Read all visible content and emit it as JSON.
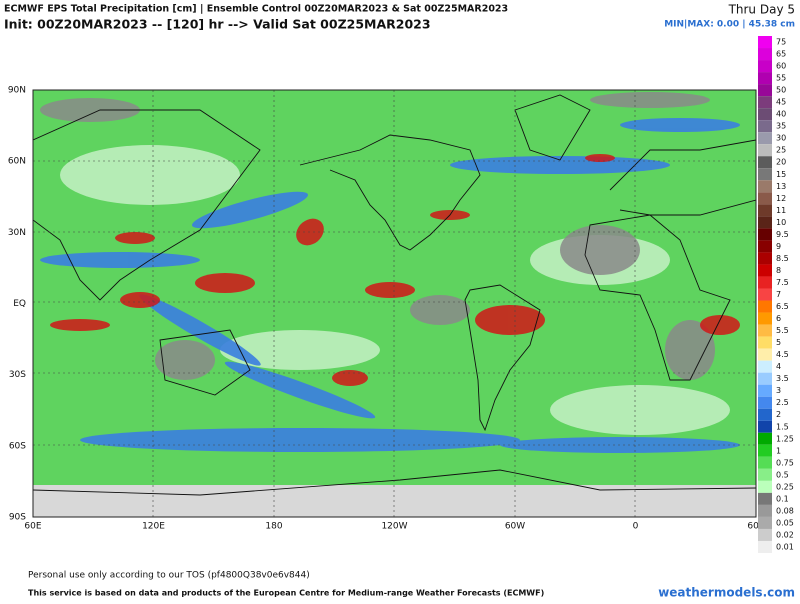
{
  "header": {
    "title": "ECMWF EPS Total Precipitation [cm] | Ensemble Control 00Z20MAR2023 & Sat 00Z25MAR2023",
    "subtitle": "Init: 00Z20MAR2023 -- [120] hr --> Valid Sat 00Z25MAR2023",
    "period": "Thru Day 5",
    "minmax": "MIN|MAX: 0.00 | 45.38 cm"
  },
  "map": {
    "lat_labels": [
      "90N",
      "60N",
      "30N",
      "EQ",
      "30S",
      "60S",
      "90S"
    ],
    "lon_labels": [
      "60E",
      "120E",
      "180",
      "120W",
      "60W",
      "0",
      "60E"
    ]
  },
  "legend": {
    "items": [
      {
        "label": "75",
        "color": "#f000f0"
      },
      {
        "label": "65",
        "color": "#dc00dc"
      },
      {
        "label": "60",
        "color": "#c800c8"
      },
      {
        "label": "55",
        "color": "#b000b0"
      },
      {
        "label": "50",
        "color": "#980898"
      },
      {
        "label": "45",
        "color": "#7c3c7c"
      },
      {
        "label": "40",
        "color": "#6c4c74"
      },
      {
        "label": "35",
        "color": "#7a6a8c"
      },
      {
        "label": "30",
        "color": "#9a9aac"
      },
      {
        "label": "25",
        "color": "#bcbcbc"
      },
      {
        "label": "20",
        "color": "#5c5c5c"
      },
      {
        "label": "15",
        "color": "#787878"
      },
      {
        "label": "13",
        "color": "#9a7a6a"
      },
      {
        "label": "12",
        "color": "#8a5a4a"
      },
      {
        "label": "11",
        "color": "#6e3a2a"
      },
      {
        "label": "10",
        "color": "#5a2418"
      },
      {
        "label": "9.5",
        "color": "#660000"
      },
      {
        "label": "9",
        "color": "#880000"
      },
      {
        "label": "8.5",
        "color": "#aa0000"
      },
      {
        "label": "8",
        "color": "#cc0000"
      },
      {
        "label": "7.5",
        "color": "#e82222"
      },
      {
        "label": "7",
        "color": "#f84444"
      },
      {
        "label": "6.5",
        "color": "#ff7700"
      },
      {
        "label": "6",
        "color": "#ff9900"
      },
      {
        "label": "5.5",
        "color": "#ffbb44"
      },
      {
        "label": "5",
        "color": "#ffdd66"
      },
      {
        "label": "4.5",
        "color": "#ffeeaa"
      },
      {
        "label": "4",
        "color": "#cceeff"
      },
      {
        "label": "3.5",
        "color": "#99ccff"
      },
      {
        "label": "3",
        "color": "#66aaff"
      },
      {
        "label": "2.5",
        "color": "#4488ee"
      },
      {
        "label": "2",
        "color": "#2266cc"
      },
      {
        "label": "1.5",
        "color": "#1144aa"
      },
      {
        "label": "1.25",
        "color": "#00aa00"
      },
      {
        "label": "1",
        "color": "#22cc22"
      },
      {
        "label": "0.75",
        "color": "#55dd55"
      },
      {
        "label": "0.5",
        "color": "#88ee88"
      },
      {
        "label": "0.25",
        "color": "#bbffbb"
      },
      {
        "label": "0.1",
        "color": "#777777"
      },
      {
        "label": "0.08",
        "color": "#999999"
      },
      {
        "label": "0.05",
        "color": "#aaaaaa"
      },
      {
        "label": "0.02",
        "color": "#cccccc"
      },
      {
        "label": "0.01",
        "color": "#eeeeee"
      }
    ]
  },
  "footer": {
    "tos": "Personal use only according to our TOS (pf4800Q38v0e6v844)",
    "source": "This service is based on data and products of the European Centre for Medium-range Weather Forecasts (ECMWF)",
    "brand": "weathermodels.com"
  }
}
